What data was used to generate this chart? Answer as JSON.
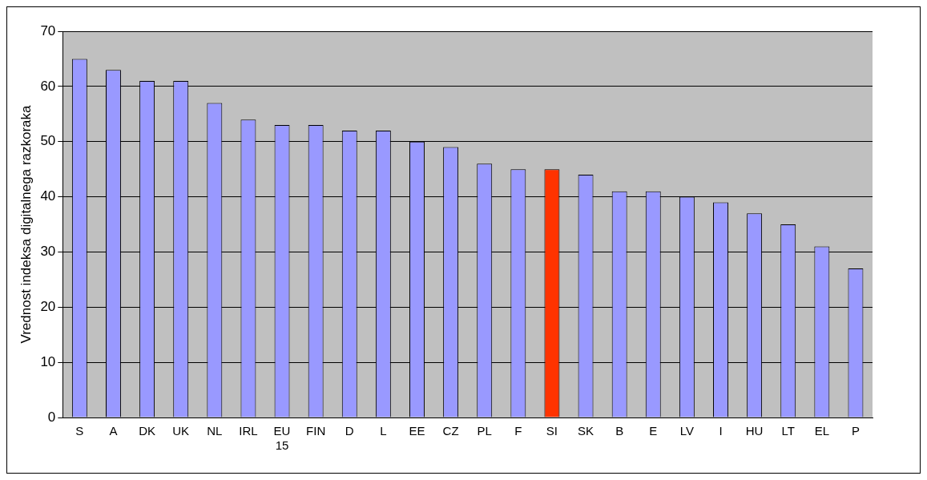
{
  "chart_data": {
    "type": "bar",
    "ylabel": "Vrednost indeksa digitalnega razkoraka",
    "categories": [
      "S",
      "A",
      "DK",
      "UK",
      "NL",
      "IRL",
      "EU 15",
      "FIN",
      "D",
      "L",
      "EE",
      "CZ",
      "PL",
      "F",
      "SI",
      "SK",
      "B",
      "E",
      "LV",
      "I",
      "HU",
      "LT",
      "EL",
      "P"
    ],
    "values": [
      65,
      63,
      61,
      61,
      57,
      54,
      53,
      53,
      52,
      52,
      50,
      49,
      46,
      45,
      45,
      44,
      41,
      41,
      40,
      39,
      37,
      35,
      31,
      27
    ],
    "colors": [
      "#9999ff",
      "#9999ff",
      "#9999ff",
      "#9999ff",
      "#9999ff",
      "#9999ff",
      "#9999ff",
      "#9999ff",
      "#9999ff",
      "#9999ff",
      "#9999ff",
      "#9999ff",
      "#9999ff",
      "#9999ff",
      "#ff3300",
      "#9999ff",
      "#9999ff",
      "#9999ff",
      "#9999ff",
      "#9999ff",
      "#9999ff",
      "#9999ff",
      "#9999ff",
      "#9999ff"
    ],
    "ylim": [
      0,
      70
    ],
    "yticks": [
      0,
      10,
      20,
      30,
      40,
      50,
      60,
      70
    ],
    "grid": "y",
    "legend": false
  }
}
